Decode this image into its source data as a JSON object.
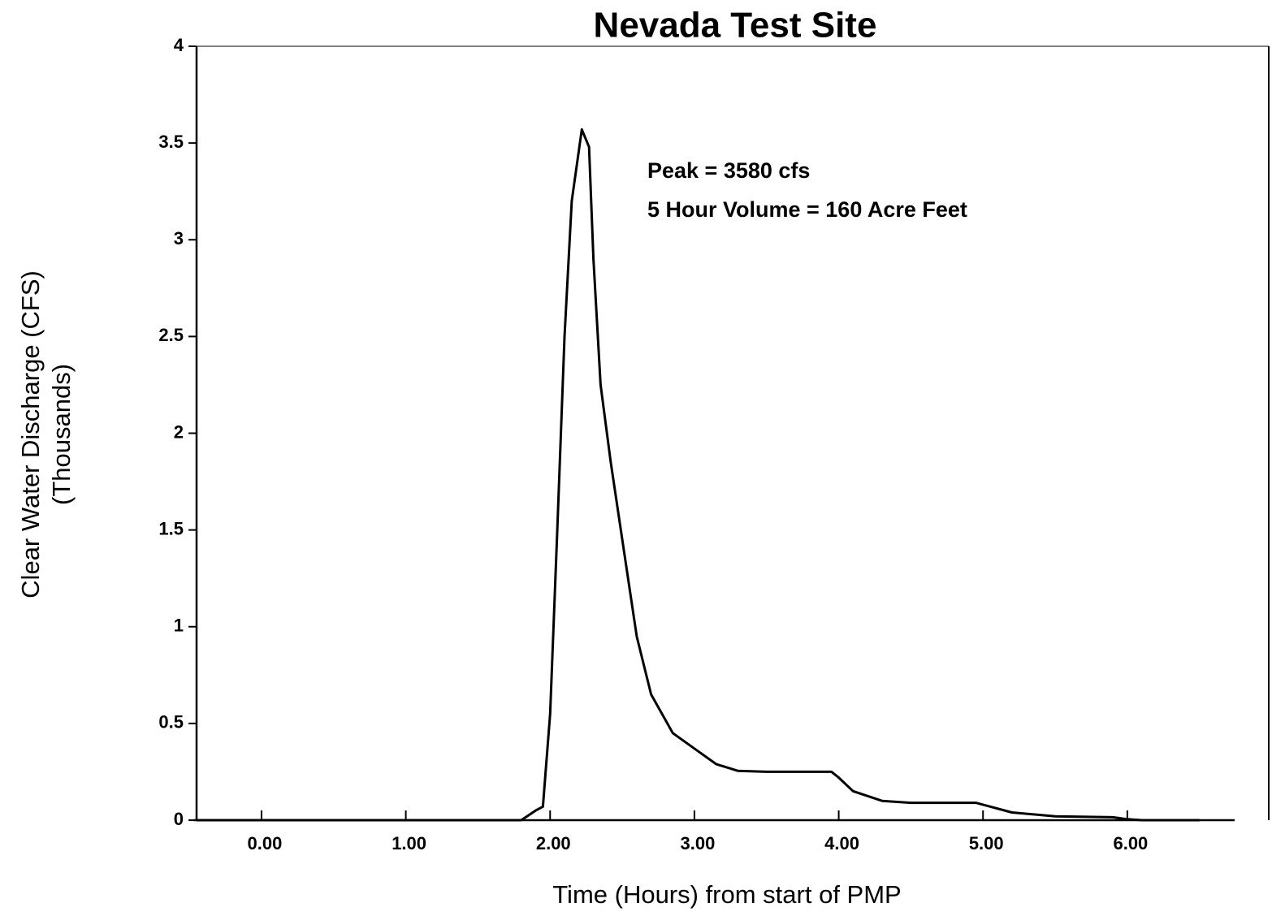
{
  "chart_data": {
    "type": "line",
    "title": "Nevada Test Site",
    "xlabel": "Time (Hours) from start of PMP",
    "ylabel": [
      "Clear Water Discharge (CFS)",
      "(Thousands)"
    ],
    "annotations": [
      "Peak = 3580 cfs",
      "5 Hour Volume = 160 Acre Feet"
    ],
    "x": [
      -0.45,
      1.8,
      1.9,
      1.95,
      2.0,
      2.05,
      2.1,
      2.15,
      2.22,
      2.27,
      2.3,
      2.35,
      2.42,
      2.5,
      2.6,
      2.7,
      2.85,
      3.0,
      3.15,
      3.3,
      3.5,
      3.95,
      4.0,
      4.1,
      4.3,
      4.5,
      4.95,
      5.05,
      5.2,
      5.5,
      5.9,
      6.0,
      6.1,
      6.5
    ],
    "values": [
      0,
      0,
      0.05,
      0.07,
      0.55,
      1.5,
      2.5,
      3.2,
      3.57,
      3.48,
      2.9,
      2.25,
      1.85,
      1.45,
      0.95,
      0.65,
      0.45,
      0.37,
      0.29,
      0.255,
      0.25,
      0.25,
      0.22,
      0.15,
      0.1,
      0.09,
      0.09,
      0.07,
      0.04,
      0.02,
      0.015,
      0.005,
      0,
      0
    ],
    "color": "#000000",
    "xlim": [
      -0.45,
      6.98
    ],
    "ylim": [
      0,
      4
    ],
    "xticks": [
      {
        "value": 0,
        "label": "0.00"
      },
      {
        "value": 1,
        "label": "1.00"
      },
      {
        "value": 2,
        "label": "2.00"
      },
      {
        "value": 3,
        "label": "3.00"
      },
      {
        "value": 4,
        "label": "4.00"
      },
      {
        "value": 5,
        "label": "5.00"
      },
      {
        "value": 6,
        "label": "6.00"
      }
    ],
    "yticks": [
      0,
      0.5,
      1,
      1.5,
      2,
      2.5,
      3,
      3.5,
      4
    ],
    "grid": false
  }
}
